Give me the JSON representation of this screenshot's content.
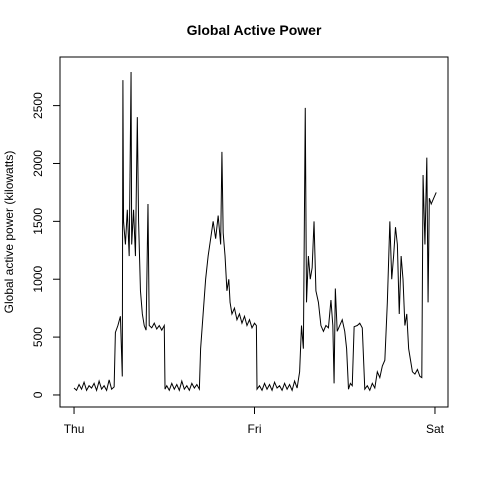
{
  "chart_data": {
    "type": "line",
    "title": "Global Active Power",
    "y_label": "Global active power (kilowatts)",
    "xlim": [
      -112,
      2984
    ],
    "ylim": [
      -104,
      2920
    ],
    "xticks": [
      {
        "value": 0,
        "label": "Thu"
      },
      {
        "value": 1440,
        "label": "Fri"
      },
      {
        "value": 2880,
        "label": "Sat"
      }
    ],
    "yticks": [
      0,
      500,
      1000,
      1500,
      2000,
      2500
    ],
    "color": "#000000",
    "x": [
      0,
      20,
      40,
      60,
      80,
      100,
      120,
      140,
      160,
      180,
      200,
      220,
      240,
      260,
      280,
      300,
      320,
      330,
      350,
      370,
      385,
      390,
      395,
      410,
      425,
      440,
      455,
      460,
      475,
      490,
      505,
      515,
      530,
      545,
      560,
      575,
      590,
      600,
      620,
      640,
      660,
      680,
      700,
      720,
      726,
      740,
      760,
      780,
      800,
      820,
      840,
      860,
      880,
      900,
      920,
      940,
      960,
      980,
      1000,
      1010,
      1030,
      1050,
      1070,
      1090,
      1110,
      1130,
      1150,
      1170,
      1180,
      1190,
      1205,
      1220,
      1235,
      1245,
      1260,
      1280,
      1300,
      1320,
      1340,
      1360,
      1380,
      1400,
      1420,
      1440,
      1455,
      1460,
      1480,
      1500,
      1520,
      1540,
      1560,
      1580,
      1600,
      1620,
      1640,
      1660,
      1680,
      1700,
      1720,
      1740,
      1760,
      1780,
      1800,
      1815,
      1830,
      1845,
      1855,
      1870,
      1885,
      1900,
      1915,
      1930,
      1950,
      1970,
      1990,
      2010,
      2030,
      2050,
      2065,
      2075,
      2085,
      2100,
      2120,
      2140,
      2160,
      2175,
      2190,
      2205,
      2220,
      2235,
      2260,
      2280,
      2300,
      2320,
      2340,
      2360,
      2380,
      2400,
      2420,
      2440,
      2460,
      2480,
      2500,
      2520,
      2535,
      2550,
      2565,
      2580,
      2595,
      2610,
      2625,
      2640,
      2655,
      2670,
      2685,
      2700,
      2720,
      2740,
      2760,
      2775,
      2785,
      2800,
      2815,
      2825,
      2835,
      2850,
      2870,
      2890
    ],
    "values": [
      60,
      40,
      90,
      50,
      110,
      40,
      80,
      60,
      100,
      40,
      120,
      50,
      80,
      40,
      130,
      50,
      70,
      540,
      600,
      680,
      160,
      2720,
      1500,
      1300,
      1600,
      1200,
      2790,
      1300,
      1600,
      1200,
      2400,
      1500,
      900,
      700,
      600,
      560,
      1650,
      600,
      580,
      620,
      570,
      600,
      560,
      600,
      50,
      80,
      40,
      100,
      50,
      90,
      40,
      120,
      50,
      80,
      40,
      100,
      60,
      90,
      50,
      400,
      700,
      1000,
      1200,
      1350,
      1500,
      1350,
      1550,
      1300,
      2100,
      1400,
      1200,
      900,
      1000,
      800,
      700,
      750,
      650,
      700,
      620,
      680,
      600,
      650,
      580,
      620,
      600,
      50,
      80,
      40,
      100,
      50,
      90,
      40,
      110,
      60,
      80,
      40,
      100,
      50,
      90,
      40,
      120,
      60,
      200,
      600,
      400,
      2480,
      800,
      1200,
      1000,
      1100,
      1500,
      900,
      800,
      600,
      550,
      600,
      580,
      820,
      600,
      100,
      920,
      550,
      600,
      650,
      550,
      400,
      50,
      100,
      80,
      590,
      600,
      620,
      580,
      50,
      80,
      40,
      100,
      60,
      200,
      150,
      250,
      300,
      800,
      1500,
      1000,
      1200,
      1450,
      1300,
      700,
      1200,
      1000,
      600,
      700,
      400,
      300,
      200,
      180,
      220,
      160,
      150,
      1900,
      1300,
      2050,
      800,
      1700,
      1650,
      1700,
      1750
    ]
  }
}
